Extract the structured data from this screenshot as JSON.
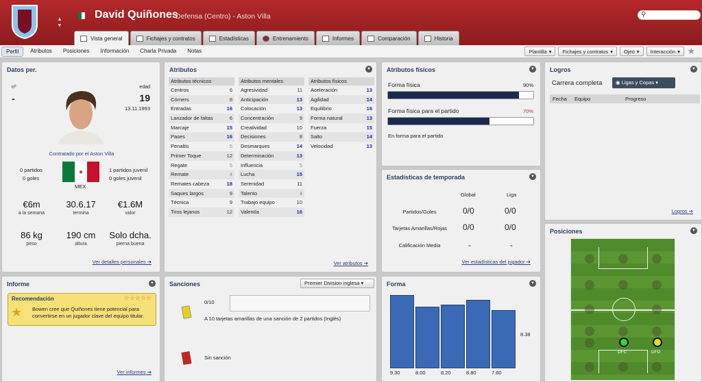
{
  "header": {
    "name": "David Quiñones",
    "position": "Defensa (Centro) - Aston Villa",
    "search_placeholder": ""
  },
  "tabs": [
    "Vista general",
    "Fichajes y contratos",
    "Estadísticas",
    "Entrenamiento",
    "Informes",
    "Comparación",
    "Historia"
  ],
  "subnav": {
    "left": [
      "Perfil",
      "Atributos",
      "Posiciones",
      "Información",
      "Charla Privada",
      "Notas"
    ],
    "right": [
      "Plantilla",
      "Fichajes y contratos",
      "Ojeo",
      "Interacción"
    ]
  },
  "personal": {
    "title": "Datos per.",
    "num_label": "nº",
    "num": "-",
    "age_label": "edad",
    "age": "19",
    "dob": "13.11.1993",
    "contract": "Contratado por el Aston Villa",
    "apps": "0 partidos",
    "goals": "0 goles",
    "youth_apps": "1 partidos juvenil",
    "youth_goals": "0 goles juvenil",
    "nation": "MEX",
    "wage": "€6m",
    "wage_label": "a la semana",
    "expires": "30.6.17",
    "expires_label": "termina",
    "value": "€1.6M",
    "value_label": "valor",
    "weight": "86 kg",
    "weight_label": "peso",
    "height": "190 cm",
    "height_label": "altura",
    "foot": "Solo dcha.",
    "foot_label": "pierna buena",
    "link": "Ver detalles personales"
  },
  "attributes": {
    "title": "Atributos",
    "link": "Ver atributos",
    "technical": {
      "header": "Atributos técnicos",
      "items": [
        [
          "Centros",
          "6"
        ],
        [
          "Córners",
          "8"
        ],
        [
          "Entradas",
          "16"
        ],
        [
          "Lanzador de faltas",
          "6"
        ],
        [
          "Marcaje",
          "15"
        ],
        [
          "Pases",
          "16"
        ],
        [
          "Penaltis",
          "5"
        ],
        [
          "Primer Toque",
          "12"
        ],
        [
          "Regate",
          "5"
        ],
        [
          "Remate",
          "4"
        ],
        [
          "Remates cabeza",
          "18"
        ],
        [
          "Saques largos",
          "9"
        ],
        [
          "Técnica",
          "9"
        ],
        [
          "Tiros lejanos",
          "12"
        ]
      ]
    },
    "mental": {
      "header": "Atributos mentales",
      "items": [
        [
          "Agresividad",
          "11"
        ],
        [
          "Anticipación",
          "13"
        ],
        [
          "Colocación",
          "13"
        ],
        [
          "Concentración",
          "9"
        ],
        [
          "Creatividad",
          "10"
        ],
        [
          "Decisiones",
          "8"
        ],
        [
          "Desmarques",
          "14"
        ],
        [
          "Determinación",
          "13"
        ],
        [
          "Influencia",
          "5"
        ],
        [
          "Lucha",
          "15"
        ],
        [
          "Serenidad",
          "11"
        ],
        [
          "Talento",
          "4"
        ],
        [
          "Trabajo equipo",
          "10"
        ],
        [
          "Valentía",
          "16"
        ]
      ]
    },
    "physical": {
      "header": "Atributos físicos",
      "items": [
        [
          "Aceleración",
          "13"
        ],
        [
          "Agilidad",
          "14"
        ],
        [
          "Equilibrio",
          "16"
        ],
        [
          "Forma natural",
          "13"
        ],
        [
          "Fuerza",
          "15"
        ],
        [
          "Salto",
          "14"
        ],
        [
          "Velocidad",
          "13"
        ]
      ]
    }
  },
  "physical_panel": {
    "title": "Atributos físicos",
    "fitness_label": "Forma física",
    "fitness_pct": "90%",
    "fitness_value": 0.9,
    "match_label": "Forma física para el partido",
    "match_pct": "70%",
    "match_value": 0.7,
    "status": "En forma para el partido"
  },
  "season": {
    "title": "Estadísticas de temporada",
    "col_global": "Global",
    "col_league": "Liga",
    "rows": [
      [
        "Partidos/Goles",
        "0/0",
        "0/0"
      ],
      [
        "Tarjetas Amarillas/Rojas",
        "0/0",
        "0/0"
      ],
      [
        "Calificación Media",
        "-",
        "-"
      ]
    ],
    "link": "Ver estadísticas del jugador"
  },
  "achievements": {
    "title": "Logros",
    "career": "Carrera completa",
    "dropdown": "Ligas y Copas",
    "cols": [
      "Fecha",
      "Equipo",
      "Progreso"
    ],
    "link": "Logros"
  },
  "report": {
    "title": "Informe",
    "rec_title": "Recomendación",
    "rec_stars": "☆☆☆☆☆",
    "rec_text": "Bowen cree que Quiñones tiene potencial para convertirse en un jugador clave del equipo titular.",
    "link": "Ver informes"
  },
  "sanctions": {
    "title": "Sanciones",
    "competition": "Premier Division inglesa",
    "yellow_count": "0/10",
    "yellow_text": "A 10 tarjetas amarillas de una sanción de 2 partidos (Inglés)",
    "red_text": "Sin sanción"
  },
  "form": {
    "title": "Forma",
    "values": [
      9.3,
      8.0,
      8.2,
      8.8,
      7.6
    ],
    "labels": [
      "9.30",
      "8.00",
      "8.20",
      "8.80",
      "7.60"
    ],
    "avg": "8.38"
  },
  "positions": {
    "title": "Posiciones",
    "p1": "DFC",
    "p2": "DFD"
  },
  "colors": {
    "header_red": "#a32224",
    "accent_blue": "#2a3f5e"
  }
}
